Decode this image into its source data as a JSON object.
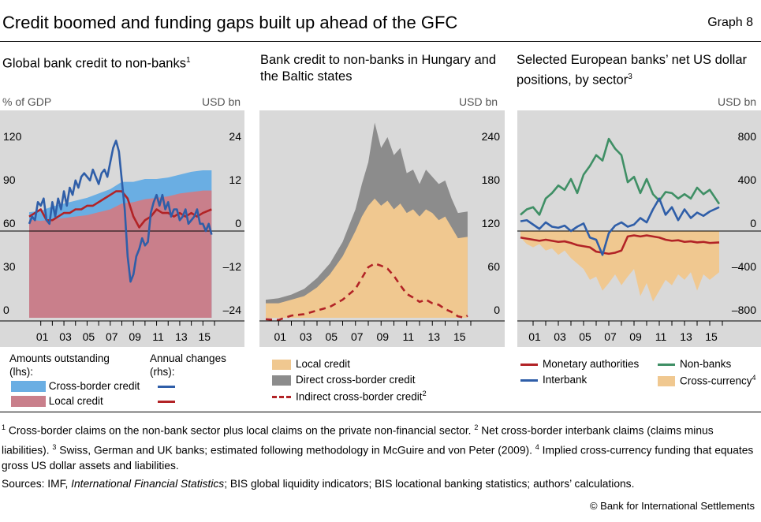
{
  "header": {
    "title": "Credit boomed and funding gaps built up ahead of the GFC",
    "graph_no": "Graph 8"
  },
  "colors": {
    "bg": "#d9d9d9",
    "blue": "#2f5ea8",
    "red": "#b22326",
    "lightblue": "#6aaee3",
    "rose": "#c97f8b",
    "orange": "#f0c890",
    "grey": "#8c8c8c",
    "green": "#3f8f65"
  },
  "chart_data": [
    {
      "type": "area",
      "title": "Global bank credit to non-banks",
      "title_note": "1",
      "left_unit": "% of GDP",
      "right_unit": "USD bn",
      "left_ticks": [
        "120",
        "90",
        "60",
        "30",
        "0"
      ],
      "right_ticks": [
        "24",
        "12",
        "0",
        "–12",
        "–24"
      ],
      "ylim_left": [
        0,
        120
      ],
      "ylim_right": [
        -24,
        24
      ],
      "x_labels": [
        "01",
        "03",
        "05",
        "07",
        "09",
        "11",
        "13",
        "15"
      ],
      "x_range": [
        2000,
        2016
      ],
      "series": [
        {
          "name": "Cross-border credit",
          "axis": "lhs",
          "kind": "stacked-area",
          "color": "#6aaee3",
          "x": [
            2000,
            2001,
            2002,
            2003,
            2004,
            2005,
            2006,
            2007,
            2008,
            2009,
            2010,
            2011,
            2012,
            2013,
            2014,
            2015,
            2015.75
          ],
          "values": [
            5,
            7,
            9,
            10,
            11,
            12,
            13,
            14,
            15,
            14,
            14,
            13,
            13,
            13,
            14,
            14,
            14
          ]
        },
        {
          "name": "Local credit",
          "axis": "lhs",
          "kind": "stacked-area",
          "color": "#c97f8b",
          "x": [
            2000,
            2001,
            2002,
            2003,
            2004,
            2005,
            2006,
            2007,
            2008,
            2009,
            2010,
            2011,
            2012,
            2013,
            2014,
            2015,
            2015.75
          ],
          "values": [
            68,
            67,
            68,
            69,
            70,
            71,
            73,
            75,
            79,
            80,
            82,
            83,
            84,
            86,
            87,
            88,
            88
          ]
        },
        {
          "name": "Annual changes – Cross-border credit",
          "axis": "rhs",
          "kind": "line",
          "color": "#2f5ea8",
          "x": [
            2000,
            2000.25,
            2000.5,
            2000.75,
            2001,
            2001.25,
            2001.5,
            2001.75,
            2002,
            2002.25,
            2002.5,
            2002.75,
            2003,
            2003.25,
            2003.5,
            2003.75,
            2004,
            2004.25,
            2004.5,
            2004.75,
            2005,
            2005.25,
            2005.5,
            2005.75,
            2006,
            2006.25,
            2006.5,
            2006.75,
            2007,
            2007.25,
            2007.5,
            2007.75,
            2008,
            2008.25,
            2008.5,
            2008.75,
            2009,
            2009.25,
            2009.5,
            2009.75,
            2010,
            2010.25,
            2010.5,
            2010.75,
            2011,
            2011.25,
            2011.5,
            2011.75,
            2012,
            2012.25,
            2012.5,
            2012.75,
            2013,
            2013.25,
            2013.5,
            2013.75,
            2014,
            2014.25,
            2014.5,
            2014.75,
            2015,
            2015.25,
            2015.5,
            2015.75
          ],
          "values": [
            2,
            4,
            3,
            8,
            7,
            9,
            3,
            2,
            8,
            4,
            9,
            6,
            11,
            7,
            12,
            10,
            14,
            12,
            15,
            16,
            15,
            14,
            17,
            15,
            13,
            16,
            17,
            15,
            19,
            23,
            25,
            22,
            14,
            6,
            -7,
            -14,
            -12,
            -7,
            -5,
            -2,
            -4,
            -3,
            5,
            8,
            10,
            7,
            10,
            6,
            8,
            4,
            6,
            6,
            3,
            4,
            6,
            2,
            3,
            4,
            6,
            2,
            2,
            0,
            2,
            -1
          ]
        },
        {
          "name": "Annual changes – Local credit",
          "axis": "rhs",
          "kind": "line",
          "color": "#b22326",
          "x": [
            2000,
            2000.5,
            2001,
            2001.5,
            2002,
            2002.5,
            2003,
            2003.5,
            2004,
            2004.5,
            2005,
            2005.5,
            2006,
            2006.5,
            2007,
            2007.5,
            2008,
            2008.5,
            2009,
            2009.5,
            2010,
            2010.5,
            2011,
            2011.5,
            2012,
            2012.5,
            2013,
            2013.5,
            2014,
            2014.5,
            2015,
            2015.75
          ],
          "values": [
            4,
            5,
            6,
            3,
            3,
            4,
            5,
            5,
            6,
            6,
            7,
            7,
            8,
            9,
            10,
            11,
            11,
            9,
            4,
            1,
            3,
            4,
            6,
            5,
            5,
            4,
            5,
            4,
            5,
            4,
            5,
            6
          ]
        }
      ],
      "legend": {
        "amounts_label": "Amounts outstanding (lhs):",
        "changes_label": "Annual changes (rhs):",
        "items": [
          "Cross-border credit",
          "Local credit"
        ]
      }
    },
    {
      "type": "area",
      "title": "Bank credit to non-banks in Hungary and the Baltic states",
      "right_unit": "USD bn",
      "right_ticks": [
        "240",
        "180",
        "120",
        "60",
        "0"
      ],
      "ylim_right": [
        0,
        240
      ],
      "x_labels": [
        "01",
        "03",
        "05",
        "07",
        "09",
        "11",
        "13",
        "15"
      ],
      "x_range": [
        2000,
        2016
      ],
      "series": [
        {
          "name": "Local credit",
          "kind": "area",
          "color": "#f0c890",
          "x": [
            2000,
            2001,
            2002,
            2003,
            2004,
            2005,
            2006,
            2007,
            2007.5,
            2008,
            2008.5,
            2009,
            2009.5,
            2010,
            2010.5,
            2011,
            2011.5,
            2012,
            2012.5,
            2013,
            2013.5,
            2014,
            2014.5,
            2015,
            2015.75
          ],
          "values": [
            20,
            20,
            25,
            30,
            42,
            60,
            85,
            120,
            140,
            155,
            165,
            155,
            162,
            150,
            158,
            145,
            150,
            140,
            150,
            145,
            135,
            140,
            125,
            110,
            112
          ]
        },
        {
          "name": "Direct cross-border credit",
          "kind": "area-top",
          "color": "#8c8c8c",
          "x": [
            2000,
            2001,
            2002,
            2003,
            2004,
            2005,
            2006,
            2007,
            2007.5,
            2008,
            2008.5,
            2009,
            2009.5,
            2010,
            2010.5,
            2011,
            2011.5,
            2012,
            2012.5,
            2013,
            2013.5,
            2014,
            2014.5,
            2015,
            2015.75
          ],
          "values": [
            25,
            27,
            32,
            40,
            55,
            75,
            105,
            150,
            185,
            215,
            270,
            235,
            250,
            225,
            235,
            200,
            205,
            185,
            205,
            195,
            185,
            190,
            165,
            145,
            147
          ]
        },
        {
          "name": "Indirect cross-border credit",
          "name_note": "2",
          "kind": "dashed-line",
          "color": "#b22326",
          "x": [
            2000,
            2001,
            2002,
            2003,
            2004,
            2005,
            2006,
            2007,
            2007.5,
            2008,
            2008.5,
            2009,
            2009.5,
            2010,
            2010.5,
            2011,
            2011.5,
            2012,
            2012.5,
            2013,
            2013.5,
            2014,
            2014.5,
            2015,
            2015.5,
            2015.75
          ],
          "values": [
            -2,
            -3,
            3,
            5,
            10,
            15,
            25,
            40,
            55,
            70,
            75,
            72,
            68,
            58,
            45,
            33,
            28,
            22,
            25,
            20,
            18,
            12,
            8,
            2,
            0,
            3
          ]
        }
      ]
    },
    {
      "type": "area",
      "title": "Selected European banks’ net US dollar positions, by sector",
      "title_note": "3",
      "right_unit": "USD bn",
      "right_ticks": [
        "800",
        "400",
        "0",
        "–400",
        "–800"
      ],
      "ylim_right": [
        -800,
        800
      ],
      "x_labels": [
        "01",
        "03",
        "05",
        "07",
        "09",
        "11",
        "13",
        "15"
      ],
      "x_range": [
        2000,
        2016
      ],
      "series": [
        {
          "name": "Cross-currency",
          "name_note": "4",
          "kind": "area-below",
          "color": "#f0c890",
          "x": [
            2000,
            2000.5,
            2001,
            2001.5,
            2002,
            2002.5,
            2003,
            2003.5,
            2004,
            2004.5,
            2005,
            2005.5,
            2006,
            2006.5,
            2007,
            2007.5,
            2008,
            2008.5,
            2009,
            2009.5,
            2010,
            2010.5,
            2011,
            2011.5,
            2012,
            2012.5,
            2013,
            2013.5,
            2014,
            2014.5,
            2015,
            2015.75
          ],
          "values": [
            -60,
            -120,
            -150,
            -120,
            -180,
            -160,
            -220,
            -180,
            -250,
            -300,
            -350,
            -450,
            -420,
            -550,
            -480,
            -400,
            -500,
            -420,
            -350,
            -600,
            -480,
            -650,
            -550,
            -450,
            -500,
            -400,
            -450,
            -380,
            -550,
            -400,
            -450,
            -380
          ]
        },
        {
          "name": "Monetary authorities",
          "kind": "line",
          "color": "#b22326",
          "x": [
            2000,
            2000.5,
            2001,
            2001.5,
            2002,
            2002.5,
            2003,
            2003.5,
            2004,
            2004.5,
            2005,
            2005.5,
            2006,
            2006.5,
            2007,
            2007.5,
            2008,
            2008.5,
            2009,
            2009.5,
            2010,
            2011,
            2011.5,
            2012,
            2012.5,
            2013,
            2013.5,
            2014,
            2014.5,
            2015,
            2015.75
          ],
          "values": [
            -60,
            -70,
            -80,
            -90,
            -80,
            -90,
            -100,
            -95,
            -110,
            -130,
            -140,
            -150,
            -190,
            -200,
            -210,
            -200,
            -180,
            -50,
            -40,
            -50,
            -40,
            -60,
            -80,
            -90,
            -85,
            -100,
            -95,
            -105,
            -100,
            -110,
            -105
          ]
        },
        {
          "name": "Non-banks",
          "kind": "line",
          "color": "#3f8f65",
          "x": [
            2000,
            2000.5,
            2001,
            2001.5,
            2002,
            2002.5,
            2003,
            2003.5,
            2004,
            2004.5,
            2005,
            2005.5,
            2006,
            2006.5,
            2007,
            2007.5,
            2008,
            2008.5,
            2009,
            2009.5,
            2010,
            2010.5,
            2011,
            2011.5,
            2012,
            2012.5,
            2013,
            2013.5,
            2014,
            2014.5,
            2015,
            2015.75
          ],
          "values": [
            150,
            200,
            220,
            150,
            300,
            350,
            420,
            380,
            480,
            350,
            520,
            600,
            700,
            650,
            850,
            760,
            700,
            450,
            500,
            350,
            480,
            340,
            280,
            360,
            350,
            300,
            340,
            300,
            400,
            340,
            380,
            250
          ]
        },
        {
          "name": "Interbank",
          "kind": "line",
          "color": "#2f5ea8",
          "x": [
            2000,
            2000.5,
            2001,
            2001.5,
            2002,
            2002.5,
            2003,
            2003.5,
            2004,
            2004.5,
            2005,
            2005.5,
            2006,
            2006.5,
            2007,
            2007.5,
            2008,
            2008.5,
            2009,
            2009.5,
            2010,
            2010.5,
            2011,
            2011.5,
            2012,
            2012.5,
            2013,
            2013.5,
            2014,
            2014.5,
            2015,
            2015.75
          ],
          "values": [
            90,
            100,
            60,
            20,
            80,
            40,
            30,
            50,
            0,
            40,
            70,
            -60,
            -80,
            -220,
            -20,
            50,
            80,
            40,
            60,
            120,
            80,
            200,
            300,
            150,
            220,
            100,
            200,
            120,
            170,
            140,
            180,
            220
          ]
        }
      ]
    }
  ],
  "panel2_legend": {
    "items": [
      "Local credit",
      "Direct cross-border credit",
      "Indirect cross-border credit"
    ],
    "note": "2"
  },
  "panel3_legend": {
    "items": [
      "Monetary authorities",
      "Non-banks",
      "Interbank",
      "Cross-currency"
    ],
    "note": "4"
  },
  "notes": {
    "n1": "1",
    "t1": " Cross-border claims on the non-bank sector plus local claims on the private non-financial sector. ",
    "n2": "2",
    "t2": " Net cross-border interbank claims (claims minus liabilities). ",
    "n3": "3",
    "t3": " Swiss, German and UK banks; estimated following methodology in McGuire and von Peter (2009). ",
    "n4": "4",
    "t4": " Implied cross-currency funding that equates gross US dollar assets and liabilities."
  },
  "sources": {
    "prefix": "Sources: IMF, ",
    "italic": "International Financial Statistics",
    "suffix": "; BIS global liquidity indicators; BIS locational banking statistics; authors’ calculations."
  },
  "copyright": "© Bank for International Settlements"
}
